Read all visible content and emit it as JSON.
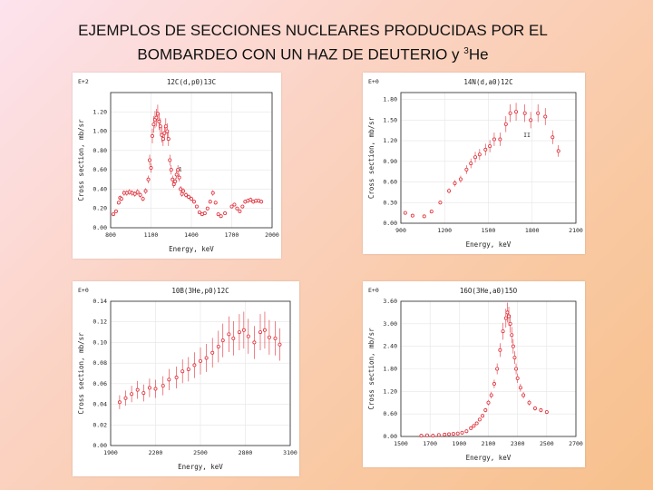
{
  "slide": {
    "title_line1": "EJEMPLOS DE SECCIONES NUCLEARES PRODUCIDAS POR EL",
    "title_line2_prefix": "BOMBARDEO CON UN HAZ DE DEUTERIO  y ",
    "title_sup": "3",
    "title_line2_suffix": "He"
  },
  "colors": {
    "marker": "#e0303a",
    "axis": "#222222",
    "grid": "#e5e5e5"
  },
  "chart_data": [
    {
      "type": "scatter",
      "title": "12C(d,p0)13C",
      "xlabel": "Energy, keV",
      "ylabel": "Cross section, mb/sr",
      "exponent": "E+2",
      "xlim": [
        800,
        2000
      ],
      "ylim": [
        0,
        1.4
      ],
      "xticks": [
        800,
        1100,
        1400,
        1700,
        2000
      ],
      "xtick_labels": [
        "800",
        "1100",
        "1400",
        "1700",
        "2000"
      ],
      "yticks": [
        0,
        0.2,
        0.4,
        0.6,
        0.8,
        1.0,
        1.2
      ],
      "ytick_labels": [
        "0.00",
        "0.20",
        "0.40",
        "0.60",
        "0.80",
        "1.00",
        "1.20"
      ],
      "annotation": "1",
      "points": [
        [
          820,
          0.14
        ],
        [
          840,
          0.17
        ],
        [
          860,
          0.26
        ],
        [
          870,
          0.31
        ],
        [
          880,
          0.3
        ],
        [
          900,
          0.36
        ],
        [
          920,
          0.36
        ],
        [
          940,
          0.37
        ],
        [
          960,
          0.36
        ],
        [
          980,
          0.35
        ],
        [
          1000,
          0.37
        ],
        [
          1020,
          0.34
        ],
        [
          1040,
          0.3
        ],
        [
          1060,
          0.38
        ],
        [
          1080,
          0.5
        ],
        [
          1090,
          0.7
        ],
        [
          1100,
          0.62
        ],
        [
          1110,
          0.95
        ],
        [
          1120,
          1.07
        ],
        [
          1130,
          1.12
        ],
        [
          1140,
          1.14
        ],
        [
          1150,
          1.18
        ],
        [
          1160,
          1.1
        ],
        [
          1170,
          1.05
        ],
        [
          1180,
          0.96
        ],
        [
          1190,
          0.92
        ],
        [
          1200,
          0.98
        ],
        [
          1210,
          1.05
        ],
        [
          1220,
          1.0
        ],
        [
          1230,
          0.92
        ],
        [
          1240,
          0.7
        ],
        [
          1250,
          0.6
        ],
        [
          1260,
          0.5
        ],
        [
          1270,
          0.45
        ],
        [
          1280,
          0.48
        ],
        [
          1290,
          0.55
        ],
        [
          1300,
          0.6
        ],
        [
          1310,
          0.52
        ],
        [
          1320,
          0.4
        ],
        [
          1330,
          0.35
        ],
        [
          1340,
          0.38
        ],
        [
          1360,
          0.34
        ],
        [
          1380,
          0.32
        ],
        [
          1400,
          0.3
        ],
        [
          1420,
          0.27
        ],
        [
          1440,
          0.22
        ],
        [
          1460,
          0.16
        ],
        [
          1480,
          0.14
        ],
        [
          1500,
          0.15
        ],
        [
          1520,
          0.2
        ],
        [
          1540,
          0.27
        ],
        [
          1560,
          0.36
        ],
        [
          1580,
          0.26
        ],
        [
          1600,
          0.14
        ],
        [
          1620,
          0.12
        ],
        [
          1650,
          0.15
        ],
        [
          1700,
          0.22
        ],
        [
          1720,
          0.24
        ],
        [
          1740,
          0.2
        ],
        [
          1760,
          0.17
        ],
        [
          1780,
          0.22
        ],
        [
          1800,
          0.27
        ],
        [
          1820,
          0.28
        ],
        [
          1840,
          0.29
        ],
        [
          1860,
          0.27
        ],
        [
          1880,
          0.28
        ],
        [
          1900,
          0.28
        ],
        [
          1920,
          0.27
        ]
      ]
    },
    {
      "type": "scatter",
      "title": "14N(d,a0)12C",
      "xlabel": "Energy, keV",
      "ylabel": "Cross section, mb/sr",
      "exponent": "E+0",
      "xlim": [
        900,
        2100
      ],
      "ylim": [
        0,
        1.9
      ],
      "xticks": [
        900,
        1200,
        1500,
        1800,
        2100
      ],
      "xtick_labels": [
        "900",
        "1200",
        "1500",
        "1800",
        "2100"
      ],
      "yticks": [
        0,
        0.3,
        0.6,
        0.9,
        1.2,
        1.5,
        1.8
      ],
      "ytick_labels": [
        "0.00",
        "0.30",
        "0.60",
        "0.90",
        "1.20",
        "1.50",
        "1.80"
      ],
      "annotation": "II",
      "points": [
        [
          930,
          0.15
        ],
        [
          980,
          0.11
        ],
        [
          1060,
          0.1
        ],
        [
          1110,
          0.17
        ],
        [
          1170,
          0.3
        ],
        [
          1230,
          0.47
        ],
        [
          1270,
          0.58
        ],
        [
          1310,
          0.64
        ],
        [
          1350,
          0.78
        ],
        [
          1380,
          0.87
        ],
        [
          1410,
          0.96
        ],
        [
          1440,
          1.0
        ],
        [
          1480,
          1.07
        ],
        [
          1510,
          1.12
        ],
        [
          1540,
          1.22
        ],
        [
          1580,
          1.22
        ],
        [
          1620,
          1.44
        ],
        [
          1650,
          1.6
        ],
        [
          1690,
          1.62
        ],
        [
          1750,
          1.6
        ],
        [
          1790,
          1.5
        ],
        [
          1840,
          1.6
        ],
        [
          1890,
          1.55
        ],
        [
          1940,
          1.25
        ],
        [
          1980,
          1.05
        ]
      ]
    },
    {
      "type": "scatter",
      "title": "10B(3He,p0)12C",
      "xlabel": "Energy, keV",
      "ylabel": "Cross section, mb/sr",
      "exponent": "E+0",
      "xlim": [
        1900,
        3100
      ],
      "ylim": [
        0,
        0.14
      ],
      "xticks": [
        1900,
        2200,
        2500,
        2800,
        3100
      ],
      "xtick_labels": [
        "1900",
        "2200",
        "2500",
        "2800",
        "3100"
      ],
      "yticks": [
        0,
        0.02,
        0.04,
        0.06,
        0.08,
        0.1,
        0.12,
        0.14
      ],
      "ytick_labels": [
        "0.00",
        "0.02",
        "0.04",
        "0.06",
        "0.08",
        "0.10",
        "0.12",
        "0.14"
      ],
      "points": [
        [
          1960,
          0.042
        ],
        [
          2000,
          0.046
        ],
        [
          2040,
          0.05
        ],
        [
          2080,
          0.054
        ],
        [
          2120,
          0.051
        ],
        [
          2160,
          0.056
        ],
        [
          2200,
          0.055
        ],
        [
          2250,
          0.058
        ],
        [
          2290,
          0.064
        ],
        [
          2340,
          0.066
        ],
        [
          2380,
          0.072
        ],
        [
          2420,
          0.074
        ],
        [
          2460,
          0.078
        ],
        [
          2500,
          0.082
        ],
        [
          2540,
          0.085
        ],
        [
          2580,
          0.09
        ],
        [
          2620,
          0.096
        ],
        [
          2650,
          0.102
        ],
        [
          2690,
          0.108
        ],
        [
          2720,
          0.104
        ],
        [
          2760,
          0.11
        ],
        [
          2790,
          0.112
        ],
        [
          2820,
          0.106
        ],
        [
          2860,
          0.1
        ],
        [
          2900,
          0.11
        ],
        [
          2930,
          0.112
        ],
        [
          2960,
          0.105
        ],
        [
          3000,
          0.104
        ],
        [
          3030,
          0.098
        ]
      ]
    },
    {
      "type": "scatter",
      "title": "16O(3He,a0)15O",
      "xlabel": "Energy, keV",
      "ylabel": "Cross section, mb/sr",
      "exponent": "E+0",
      "xlim": [
        1500,
        2700
      ],
      "ylim": [
        0,
        3.6
      ],
      "xticks": [
        1500,
        1700,
        1900,
        2100,
        2300,
        2500,
        2700
      ],
      "xtick_labels": [
        "1500",
        "1700",
        "1900",
        "2100",
        "2300",
        "2500",
        "2700"
      ],
      "yticks": [
        0,
        0.6,
        1.2,
        1.8,
        2.4,
        3.0,
        3.6
      ],
      "ytick_labels": [
        "0.00",
        "0.60",
        "1.20",
        "1.80",
        "2.40",
        "3.00",
        "3.60"
      ],
      "points": [
        [
          1640,
          0.02
        ],
        [
          1680,
          0.03
        ],
        [
          1720,
          0.02
        ],
        [
          1760,
          0.04
        ],
        [
          1800,
          0.05
        ],
        [
          1830,
          0.06
        ],
        [
          1860,
          0.07
        ],
        [
          1890,
          0.08
        ],
        [
          1920,
          0.1
        ],
        [
          1950,
          0.14
        ],
        [
          1980,
          0.22
        ],
        [
          2000,
          0.28
        ],
        [
          2020,
          0.35
        ],
        [
          2040,
          0.45
        ],
        [
          2060,
          0.55
        ],
        [
          2080,
          0.7
        ],
        [
          2100,
          0.9
        ],
        [
          2120,
          1.1
        ],
        [
          2140,
          1.4
        ],
        [
          2160,
          1.8
        ],
        [
          2180,
          2.3
        ],
        [
          2200,
          2.8
        ],
        [
          2220,
          3.15
        ],
        [
          2230,
          3.3
        ],
        [
          2240,
          3.2
        ],
        [
          2250,
          3.0
        ],
        [
          2260,
          2.7
        ],
        [
          2270,
          2.4
        ],
        [
          2280,
          2.1
        ],
        [
          2290,
          1.8
        ],
        [
          2300,
          1.55
        ],
        [
          2320,
          1.3
        ],
        [
          2340,
          1.1
        ],
        [
          2380,
          0.9
        ],
        [
          2420,
          0.75
        ],
        [
          2460,
          0.7
        ],
        [
          2500,
          0.65
        ]
      ]
    }
  ]
}
